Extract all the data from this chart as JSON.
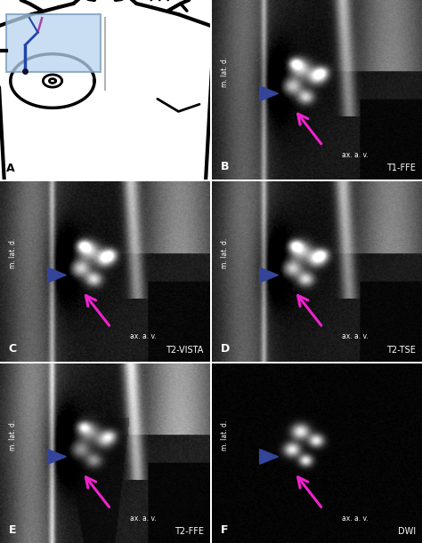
{
  "figure_width": 4.74,
  "figure_height": 6.11,
  "dpi": 100,
  "panel_subtitles": {
    "B": "T1-FFE",
    "C": "T2-VISTA",
    "D": "T2-TSE",
    "E": "T2-FFE",
    "F": "DWI"
  },
  "blue_rect_color": "#aac8e8",
  "arrow_pink": "#ee22cc",
  "arrowhead_blue": "#334499",
  "label_white": "#ffffff",
  "label_black": "#000000",
  "text_mlatd": "m. lat. d.",
  "text_axav": "ax. a. v."
}
